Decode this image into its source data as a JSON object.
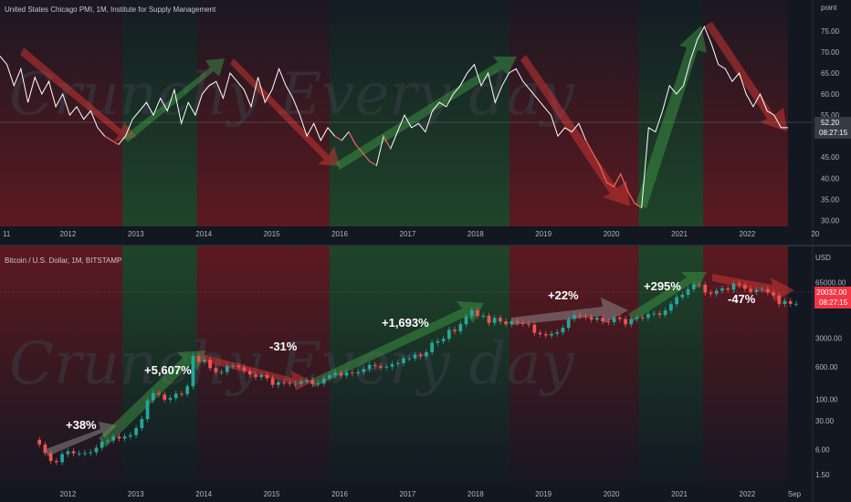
{
  "top_panel": {
    "title": "United States Chicago PMI, 1M, Institute for Supply Management",
    "unit_label": "point",
    "last_value_tag": "52.20",
    "countdown_tag": "08:27:15",
    "y_ticks": [
      "75.00",
      "70.00",
      "65.00",
      "60.00",
      "55.00",
      "50.00",
      "45.00",
      "40.00",
      "35.00",
      "30.00"
    ],
    "x_ticks": [
      "11",
      "2012",
      "2013",
      "2014",
      "2015",
      "2016",
      "2017",
      "2018",
      "2019",
      "2020",
      "2021",
      "2022",
      "20"
    ]
  },
  "bottom_panel": {
    "title": "Bitcoin / U.S. Dollar, 1M, BITSTAMP",
    "unit_label": "USD",
    "last_value_tag": "20032.00",
    "countdown_tag": "08:27:15",
    "y_ticks": [
      "65000.00",
      "20000.00",
      "3000.00",
      "600.00",
      "100.00",
      "30.00",
      "6.00",
      "1.50"
    ],
    "x_ticks": [
      "2012",
      "2013",
      "2014",
      "2015",
      "2016",
      "2017",
      "2018",
      "2019",
      "2020",
      "2021",
      "2022",
      "Sep"
    ],
    "annotations": [
      "+38%",
      "+5,607%",
      "-31%",
      "+1,693%",
      "+22%",
      "+295%",
      "-47%"
    ]
  },
  "watermark": {
    "line_top": "Crunchy Every day",
    "line_bottom": "Crunchy Every day"
  },
  "colors": {
    "background": "#131722",
    "up_candle": "#26a69a",
    "down_candle": "#ef5350",
    "pmi_line": "#ffffff",
    "green_zone": "#1b5e20",
    "red_zone": "#7f0000",
    "price_tag": "#f23645",
    "pmi_tag": "#363a45"
  },
  "chart_data": [
    {
      "type": "line",
      "title": "United States Chicago PMI, 1M, Institute for Supply Management",
      "ylabel": "point",
      "ylim": [
        29,
        78
      ],
      "x_start_year": 2011,
      "series": [
        {
          "values": [
            69,
            67,
            62,
            66,
            58,
            64,
            60,
            63,
            57,
            60,
            55,
            57,
            54,
            56,
            52,
            50,
            49,
            48,
            50,
            54,
            56,
            58,
            55,
            59,
            56,
            61,
            53,
            58,
            55,
            60,
            62,
            63,
            59,
            65,
            63,
            61,
            57,
            64,
            58,
            61,
            66,
            62,
            59,
            55,
            50,
            53,
            49,
            52,
            50,
            49,
            51,
            48,
            46,
            44,
            43,
            50,
            47,
            51,
            55,
            52,
            53,
            51,
            56,
            58,
            57,
            60,
            62,
            65,
            67,
            62,
            65,
            58,
            62,
            65,
            66,
            63,
            61,
            59,
            57,
            55,
            50,
            52,
            51,
            53,
            49,
            46,
            43,
            39,
            38,
            41,
            37,
            34,
            33,
            52,
            51,
            56,
            62,
            60,
            62,
            68,
            73,
            76,
            72,
            67,
            66,
            63,
            65,
            60,
            57,
            60,
            56,
            55,
            52,
            52
          ]
        }
      ]
    },
    {
      "type": "candlestick",
      "title": "Bitcoin / U.S. Dollar, 1M, BITSTAMP",
      "ylabel": "USD",
      "log_scale": true,
      "ylim": [
        1,
        130000
      ],
      "x_start_year": 2011.58,
      "x": [
        "2011-08",
        "2011-09",
        "2011-10",
        "2011-11",
        "2011-12",
        "2012-01",
        "2012-02",
        "2012-03",
        "2012-04",
        "2012-05",
        "2012-06",
        "2012-07",
        "2012-08",
        "2012-09",
        "2012-10",
        "2012-11",
        "2012-12",
        "2013-01",
        "2013-02",
        "2013-03",
        "2013-04",
        "2013-05",
        "2013-06",
        "2013-07",
        "2013-08",
        "2013-09",
        "2013-10",
        "2013-11",
        "2013-12",
        "2014-01",
        "2014-02",
        "2014-03",
        "2014-04",
        "2014-05",
        "2014-06",
        "2014-07",
        "2014-08",
        "2014-09",
        "2014-10",
        "2014-11",
        "2014-12",
        "2015-01",
        "2015-02",
        "2015-03",
        "2015-04",
        "2015-05",
        "2015-06",
        "2015-07",
        "2015-08",
        "2015-09",
        "2015-10",
        "2015-11",
        "2015-12",
        "2016-01",
        "2016-02",
        "2016-03",
        "2016-04",
        "2016-05",
        "2016-06",
        "2016-07",
        "2016-08",
        "2016-09",
        "2016-10",
        "2016-11",
        "2016-12",
        "2017-01",
        "2017-02",
        "2017-03",
        "2017-04",
        "2017-05",
        "2017-06",
        "2017-07",
        "2017-08",
        "2017-09",
        "2017-10",
        "2017-11",
        "2017-12",
        "2018-01",
        "2018-02",
        "2018-03",
        "2018-04",
        "2018-05",
        "2018-06",
        "2018-07",
        "2018-08",
        "2018-09",
        "2018-10",
        "2018-11",
        "2018-12",
        "2019-01",
        "2019-02",
        "2019-03",
        "2019-04",
        "2019-05",
        "2019-06",
        "2019-07",
        "2019-08",
        "2019-09",
        "2019-10",
        "2019-11",
        "2019-12",
        "2020-01",
        "2020-02",
        "2020-03",
        "2020-04",
        "2020-05",
        "2020-06",
        "2020-07",
        "2020-08",
        "2020-09",
        "2020-10",
        "2020-11",
        "2020-12",
        "2021-01",
        "2021-02",
        "2021-03",
        "2021-04",
        "2021-05",
        "2021-06",
        "2021-07",
        "2021-08",
        "2021-09",
        "2021-10",
        "2021-11",
        "2021-12",
        "2022-01",
        "2022-02",
        "2022-03",
        "2022-04",
        "2022-05",
        "2022-06",
        "2022-07",
        "2022-08",
        "2022-09"
      ],
      "close": [
        8,
        5,
        3.2,
        3,
        4.7,
        5.5,
        4.9,
        4.9,
        5,
        5.2,
        6.7,
        9.4,
        10,
        12.4,
        11.2,
        12.5,
        13.5,
        20,
        33,
        93,
        140,
        129,
        97,
        106,
        135,
        133,
        204,
        1100,
        800,
        900,
        560,
        450,
        450,
        630,
        640,
        590,
        480,
        390,
        340,
        380,
        320,
        220,
        255,
        245,
        235,
        235,
        264,
        285,
        230,
        238,
        315,
        378,
        430,
        370,
        437,
        416,
        448,
        530,
        670,
        624,
        575,
        610,
        700,
        740,
        965,
        970,
        1190,
        1080,
        1350,
        2300,
        2500,
        2870,
        4700,
        4340,
        6450,
        10000,
        14000,
        10200,
        10300,
        6900,
        9200,
        7500,
        6400,
        7700,
        7000,
        6600,
        6300,
        4000,
        3700,
        3450,
        3800,
        4100,
        5300,
        8600,
        10800,
        10100,
        9600,
        8300,
        9200,
        7500,
        7200,
        9350,
        8550,
        6400,
        8600,
        9450,
        9150,
        11350,
        11650,
        10800,
        13800,
        19700,
        29000,
        33100,
        45200,
        58900,
        57800,
        37300,
        35000,
        41500,
        47100,
        43800,
        61300,
        57000,
        46200,
        38500,
        43200,
        45500,
        37700,
        31800,
        19900,
        23300,
        20000,
        20032
      ]
    }
  ]
}
